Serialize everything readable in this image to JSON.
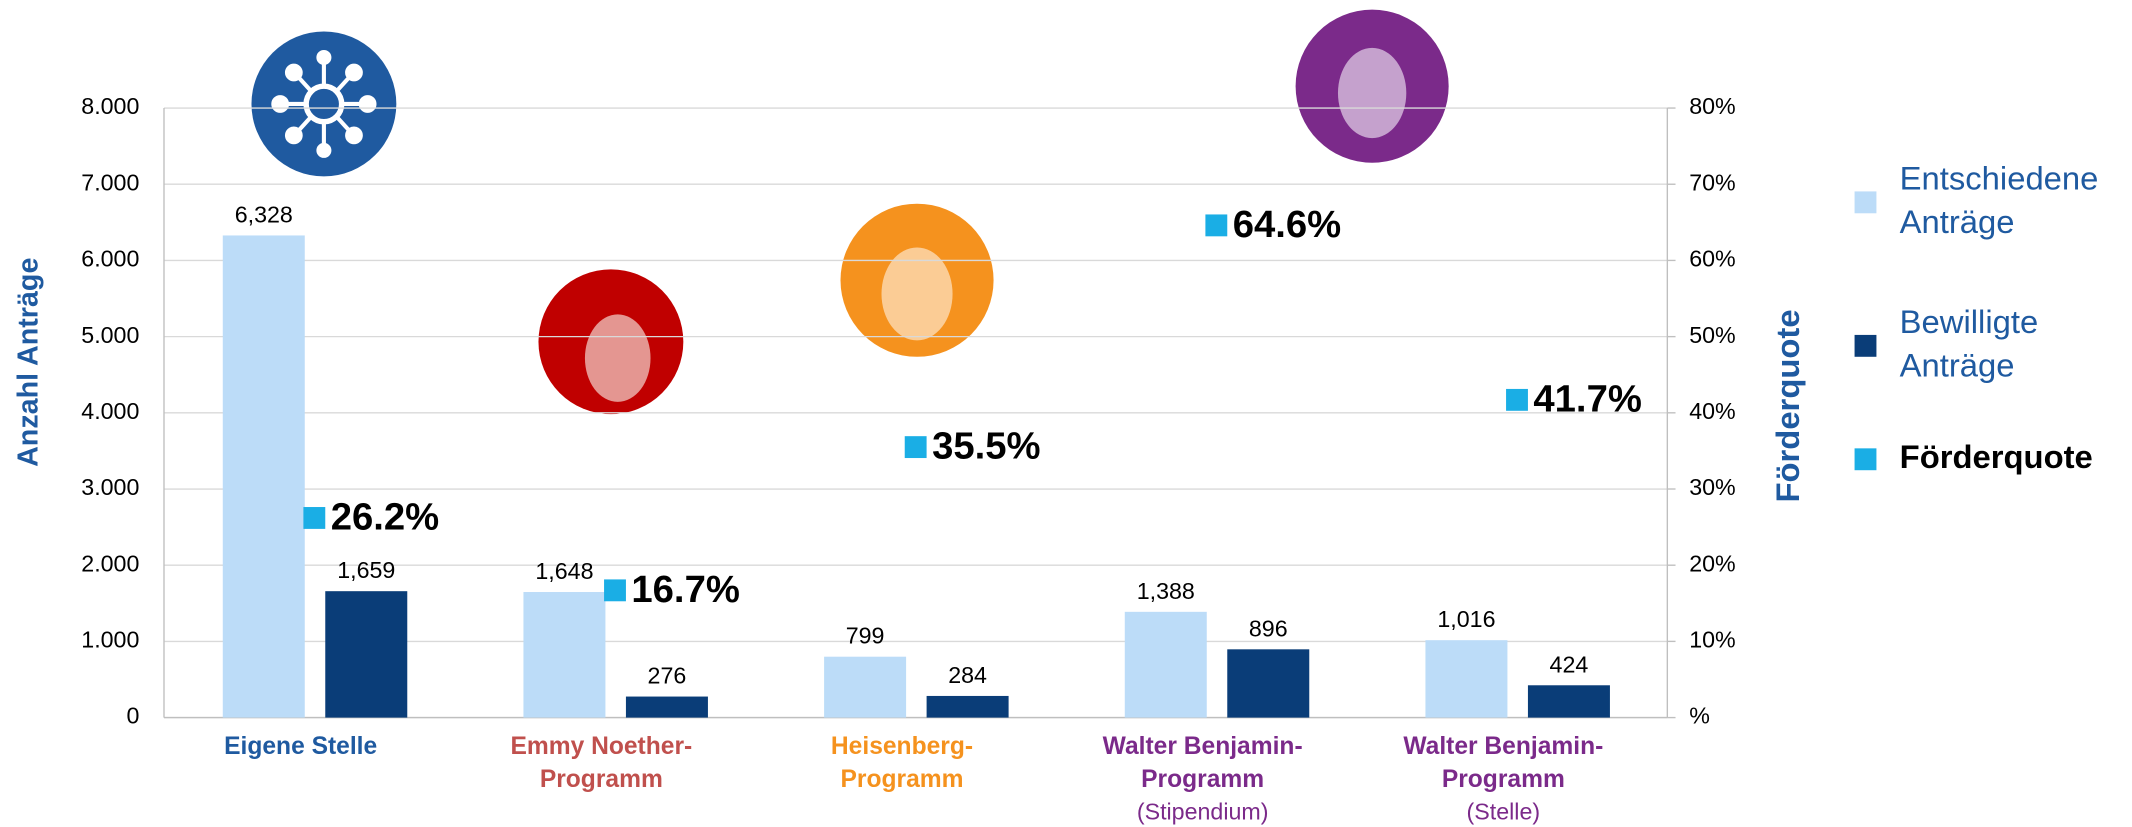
{
  "chart_data": {
    "type": "bar",
    "categories": [
      [
        "Eigene Stelle"
      ],
      [
        "Emmy Noether-",
        "Programm"
      ],
      [
        "Heisenberg-",
        "Programm"
      ],
      [
        "Walter Benjamin-",
        "Programm"
      ],
      [
        "Walter Benjamin-",
        "Programm"
      ]
    ],
    "category_notes": [
      null,
      null,
      null,
      "(Stipendium)",
      "(Stelle)"
    ],
    "category_colors": [
      "#1f5aa0",
      "#c0504d",
      "#f5921e",
      "#7b2a8a",
      "#7b2a8a"
    ],
    "ylabel": "Anzahl Anträge",
    "y2label": "Förderquote",
    "series": [
      {
        "name": "Entschiedene Anträge",
        "color": "#bcdcf8",
        "values": [
          6328,
          1648,
          799,
          1388,
          1016
        ],
        "value_labels": [
          "6,328",
          "1,648",
          "799",
          "1,388",
          "1,016"
        ]
      },
      {
        "name": "Bewilligte Anträge",
        "color": "#0a3d78",
        "values": [
          1659,
          276,
          284,
          896,
          424
        ],
        "value_labels": [
          "1,659",
          "276",
          "284",
          "896",
          "424"
        ]
      },
      {
        "name": "Förderquote",
        "type": "scatter",
        "axis": "y2",
        "color": "#1aaee5",
        "values": [
          26.2,
          16.7,
          35.5,
          64.6,
          41.7
        ],
        "value_labels": [
          "26.2%",
          "16.7%",
          "35.5%",
          "64.6%",
          "41.7%"
        ]
      }
    ],
    "ylim": [
      0,
      8000
    ],
    "yticks": [
      0,
      {
        "value": 1000,
        "label": "1.000"
      },
      {
        "value": 2000,
        "label": "2.000"
      },
      {
        "value": 3000,
        "label": "3.000"
      },
      {
        "value": 4000,
        "label": "4.000"
      },
      {
        "value": 5000,
        "label": "5.000"
      },
      {
        "value": 6000,
        "label": "6.000"
      },
      {
        "value": 7000,
        "label": "7.000"
      },
      {
        "value": 8000,
        "label": "8.000"
      }
    ],
    "y2lim": [
      0,
      80
    ],
    "y2ticks": [
      {
        "value": 0,
        "label": "%"
      },
      {
        "value": 10,
        "label": "10%"
      },
      {
        "value": 20,
        "label": "20%"
      },
      {
        "value": 30,
        "label": "30%"
      },
      {
        "value": 40,
        "label": "40%"
      },
      {
        "value": 50,
        "label": "50%"
      },
      {
        "value": 60,
        "label": "60%"
      },
      {
        "value": 70,
        "label": "70%"
      },
      {
        "value": 80,
        "label": "80%"
      }
    ],
    "grid": true,
    "legend": "right"
  }
}
